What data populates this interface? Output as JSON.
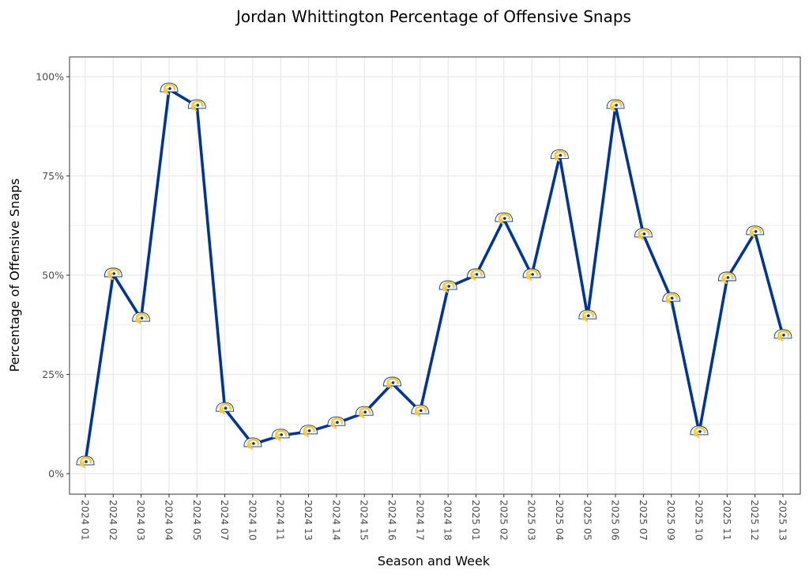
{
  "chart_data": {
    "type": "line",
    "title": "Jordan Whittington Percentage of Offensive Snaps",
    "xlabel": "Season and Week",
    "ylabel": "Percentage of Offensive Snaps",
    "ylim": [
      -4,
      105
    ],
    "yticks": [
      0,
      25,
      50,
      75,
      100
    ],
    "ytick_labels": [
      "0%",
      "25%",
      "50%",
      "75%",
      "100%"
    ],
    "grid": true,
    "legend": "none",
    "marker": "rams-logo-icon",
    "line_color": "#003594",
    "categories": [
      "2024 01",
      "2024 02",
      "2024 03",
      "2024 04",
      "2024 05",
      "2024 07",
      "2024 10",
      "2024 11",
      "2024 13",
      "2024 14",
      "2024 15",
      "2024 16",
      "2024 17",
      "2024 18",
      "2025 01",
      "2025 02",
      "2025 03",
      "2025 04",
      "2025 05",
      "2025 06",
      "2025 07",
      "2025 09",
      "2025 10",
      "2025 11",
      "2025 12",
      "2025 13"
    ],
    "series": [
      {
        "name": "Jordan Whittington",
        "values": [
          2.8,
          50.2,
          39.0,
          96.8,
          92.6,
          16.3,
          7.4,
          9.6,
          10.6,
          12.7,
          15.3,
          22.7,
          15.7,
          47.0,
          50.0,
          64.1,
          50.0,
          80.0,
          39.6,
          92.6,
          60.2,
          44.0,
          10.4,
          49.2,
          60.8,
          34.7
        ]
      }
    ]
  },
  "colors": {
    "line": "#003594",
    "marker_gold": "#FFC72C",
    "marker_blue": "#003594",
    "grid": "#ebebeb",
    "panel_border": "#333333",
    "tick_label": "#4d4d4d"
  }
}
